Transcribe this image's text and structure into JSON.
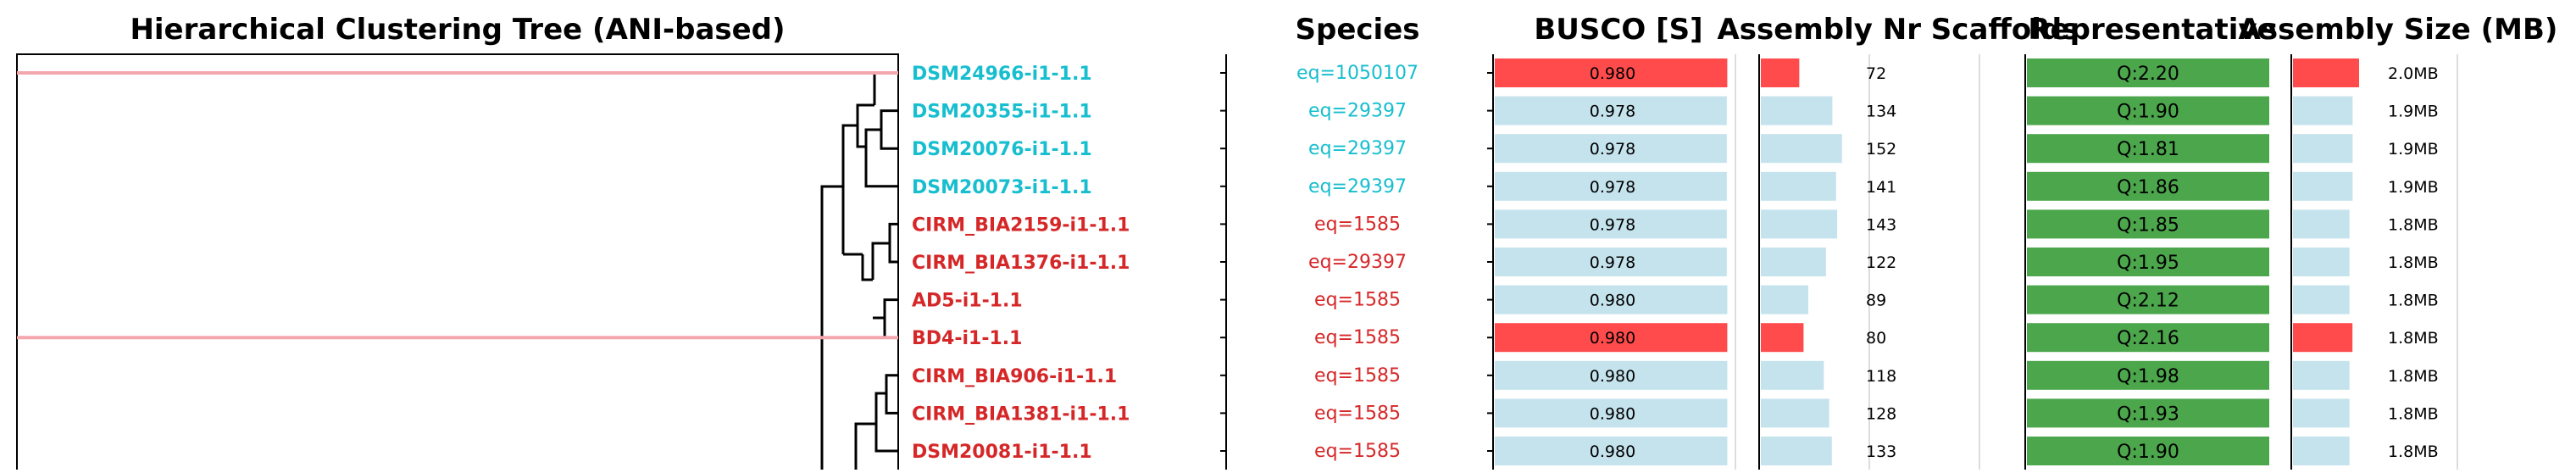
{
  "title": "Hierarchical Clustering Tree (ANI-based)",
  "headers": {
    "species": "Species",
    "busco": "BUSCO [S]",
    "scaffolds": "Assembly Nr Scaffolds",
    "representative": "Representative",
    "size": "Assembly Size (MB)"
  },
  "colors": {
    "cyan": "#17becf",
    "red": "#d62728",
    "highlight": "#ff4b4b",
    "light": "#c5e3ed",
    "green": "#4ca64c",
    "highlight_line": "#f4a6ad"
  },
  "chart_data": {
    "type": "table",
    "rows": [
      {
        "label": "DSM24966-i1-1.1",
        "group": "cyan",
        "species": "eq=1050107",
        "busco": 0.98,
        "busco_text": "0.980",
        "scaffolds": 72,
        "scaffolds_text": "72",
        "representative": "Q:2.20",
        "size_mb": 2.0,
        "size_text": "2.0MB",
        "highlight": true
      },
      {
        "label": "DSM20355-i1-1.1",
        "group": "cyan",
        "species": "eq=29397",
        "busco": 0.978,
        "busco_text": "0.978",
        "scaffolds": 134,
        "scaffolds_text": "134",
        "representative": "Q:1.90",
        "size_mb": 1.9,
        "size_text": "1.9MB",
        "highlight": false
      },
      {
        "label": "DSM20076-i1-1.1",
        "group": "cyan",
        "species": "eq=29397",
        "busco": 0.978,
        "busco_text": "0.978",
        "scaffolds": 152,
        "scaffolds_text": "152",
        "representative": "Q:1.81",
        "size_mb": 1.9,
        "size_text": "1.9MB",
        "highlight": false
      },
      {
        "label": "DSM20073-i1-1.1",
        "group": "cyan",
        "species": "eq=29397",
        "busco": 0.978,
        "busco_text": "0.978",
        "scaffolds": 141,
        "scaffolds_text": "141",
        "representative": "Q:1.86",
        "size_mb": 1.9,
        "size_text": "1.9MB",
        "highlight": false
      },
      {
        "label": "CIRM_BIA2159-i1-1.1",
        "group": "red",
        "species": "eq=1585",
        "busco": 0.978,
        "busco_text": "0.978",
        "scaffolds": 143,
        "scaffolds_text": "143",
        "representative": "Q:1.85",
        "size_mb": 1.8,
        "size_text": "1.8MB",
        "highlight": false
      },
      {
        "label": "CIRM_BIA1376-i1-1.1",
        "group": "red",
        "species": "eq=29397",
        "busco": 0.978,
        "busco_text": "0.978",
        "scaffolds": 122,
        "scaffolds_text": "122",
        "representative": "Q:1.95",
        "size_mb": 1.8,
        "size_text": "1.8MB",
        "highlight": false
      },
      {
        "label": "AD5-i1-1.1",
        "group": "red",
        "species": "eq=1585",
        "busco": 0.98,
        "busco_text": "0.980",
        "scaffolds": 89,
        "scaffolds_text": "89",
        "representative": "Q:2.12",
        "size_mb": 1.8,
        "size_text": "1.8MB",
        "highlight": false
      },
      {
        "label": "BD4-i1-1.1",
        "group": "red",
        "species": "eq=1585",
        "busco": 0.98,
        "busco_text": "0.980",
        "scaffolds": 80,
        "scaffolds_text": "80",
        "representative": "Q:2.16",
        "size_mb": 1.8,
        "size_text": "1.8MB",
        "highlight": true
      },
      {
        "label": "CIRM_BIA906-i1-1.1",
        "group": "red",
        "species": "eq=1585",
        "busco": 0.98,
        "busco_text": "0.980",
        "scaffolds": 118,
        "scaffolds_text": "118",
        "representative": "Q:1.98",
        "size_mb": 1.8,
        "size_text": "1.8MB",
        "highlight": false
      },
      {
        "label": "CIRM_BIA1381-i1-1.1",
        "group": "red",
        "species": "eq=1585",
        "busco": 0.98,
        "busco_text": "0.980",
        "scaffolds": 128,
        "scaffolds_text": "128",
        "representative": "Q:1.93",
        "size_mb": 1.8,
        "size_text": "1.8MB",
        "highlight": false
      },
      {
        "label": "DSM20081-i1-1.1",
        "group": "red",
        "species": "eq=1585",
        "busco": 0.98,
        "busco_text": "0.980",
        "scaffolds": 133,
        "scaffolds_text": "133",
        "representative": "Q:1.90",
        "size_mb": 1.8,
        "size_text": "1.8MB",
        "highlight": false
      }
    ],
    "busco_range": [
      0,
      1.0
    ],
    "scaffolds_range": [
      0,
      160
    ],
    "size_range": [
      0,
      2.0
    ]
  }
}
